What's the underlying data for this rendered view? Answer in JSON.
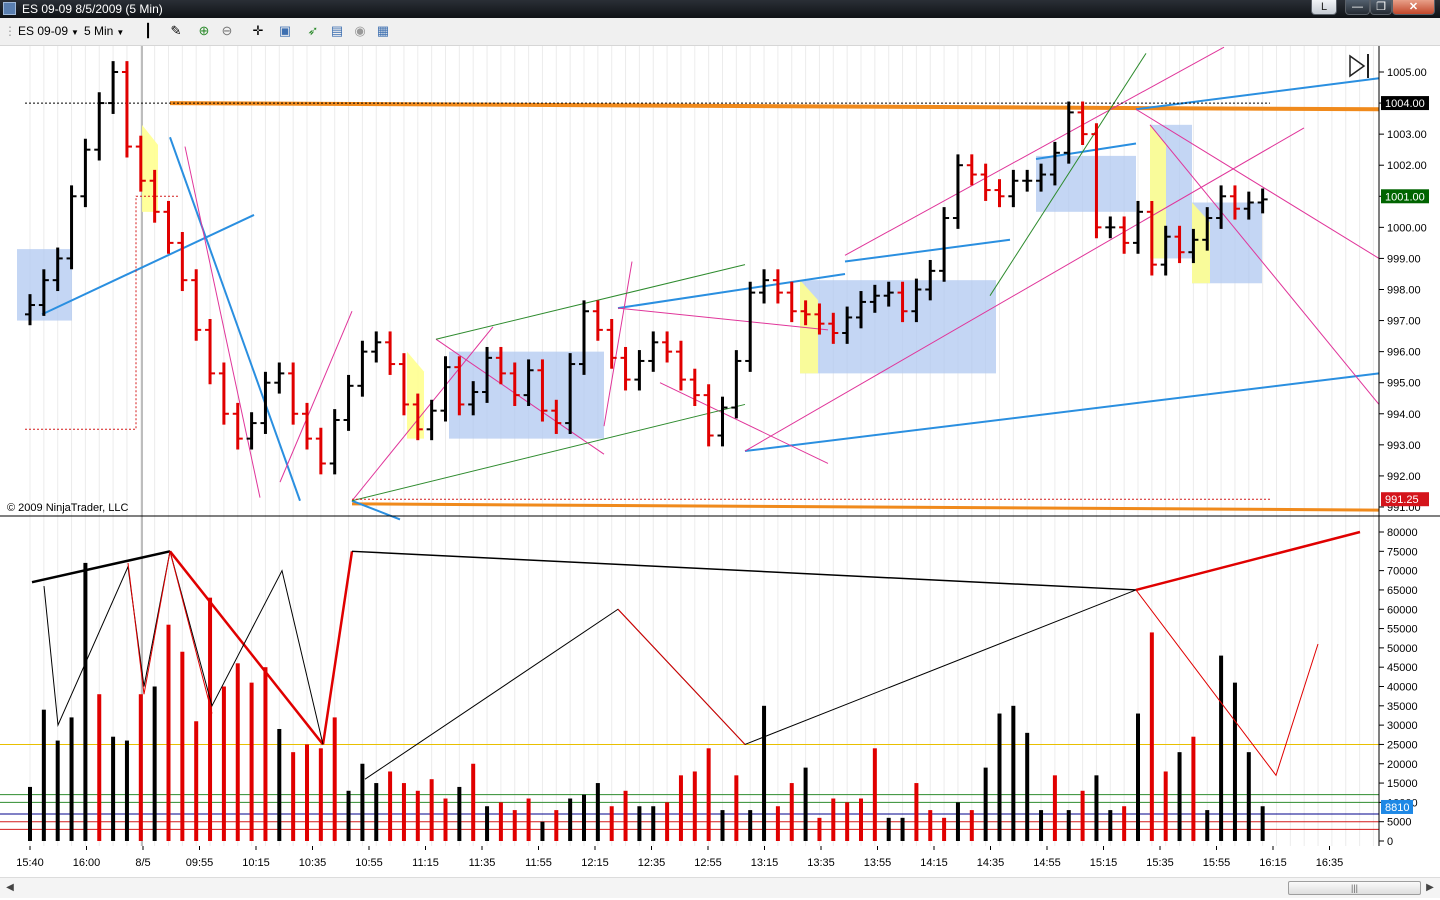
{
  "window": {
    "title": "ES 09-09  8/5/2009 (5 Min)",
    "buttons": {
      "restore_l": "L",
      "minimize": "—",
      "maximize": "❐",
      "close": "✕"
    }
  },
  "toolbar": {
    "instrument": "ES 09-09",
    "interval": "5 Min",
    "icons": [
      "bar-type-icon",
      "drawing-tool-icon",
      "zoom-in-icon",
      "zoom-out-icon",
      "crosshair-icon",
      "properties-icon",
      "strategies-icon",
      "indicators-icon",
      "data-series-icon",
      "chart-table-icon"
    ]
  },
  "chart": {
    "copyright": "© 2009 NinjaTrader, LLC",
    "price_axis": [
      "1005.00",
      "1004.00",
      "1003.00",
      "1002.00",
      "1001.00",
      "1000.00",
      "999.00",
      "998.00",
      "997.00",
      "996.00",
      "995.00",
      "994.00",
      "993.00",
      "992.00",
      "991.00"
    ],
    "price_tags": [
      {
        "label": "1004.00",
        "color": "#000000"
      },
      {
        "label": "1001.00",
        "color": "#006400"
      },
      {
        "label": "991.25",
        "color": "#d4141b"
      }
    ],
    "volume_axis": [
      "80000",
      "75000",
      "70000",
      "65000",
      "60000",
      "55000",
      "50000",
      "45000",
      "40000",
      "35000",
      "30000",
      "25000",
      "20000",
      "15000",
      "10000",
      "5000",
      "0"
    ],
    "volume_tag": {
      "label": "8810",
      "color": "#1e88e5"
    },
    "time_axis": [
      "15:40",
      "16:00",
      "8/5",
      "09:55",
      "10:15",
      "10:35",
      "10:55",
      "11:15",
      "11:35",
      "11:55",
      "12:15",
      "12:35",
      "12:55",
      "13:15",
      "13:35",
      "13:55",
      "14:15",
      "14:35",
      "14:55",
      "15:15",
      "15:35",
      "15:55",
      "16:15",
      "16:35"
    ],
    "colors": {
      "up": "#000000",
      "down": "#e00000",
      "box": "#b0c8f0",
      "fill_yellow": "#ffff90",
      "trend_blue": "#2a8fe0",
      "trend_orange": "#f08a1c",
      "trend_pink": "#e0359a",
      "trend_green": "#2e8b2e"
    }
  },
  "chart_data": {
    "type": "bar",
    "categories": [
      "15:40",
      "16:00",
      "8/5",
      "09:55",
      "10:15",
      "10:35",
      "10:55",
      "11:15",
      "11:35",
      "11:55",
      "12:15",
      "12:35",
      "12:55",
      "13:15",
      "13:35",
      "13:55",
      "14:15",
      "14:35",
      "14:55",
      "15:15",
      "15:35",
      "15:55",
      "16:15",
      "16:35"
    ],
    "ylim_price": [
      991,
      1005
    ],
    "ylim_volume": [
      0,
      80000
    ],
    "volume": [
      14000,
      34000,
      26000,
      32000,
      72000,
      38000,
      27000,
      26000,
      38000,
      40000,
      56000,
      49000,
      31000,
      63000,
      40000,
      46000,
      41000,
      45000,
      29000,
      23000,
      25000,
      24000,
      32000,
      13000,
      20000,
      15000,
      18000,
      15000,
      13000,
      16000,
      11000,
      14000,
      20000,
      9000,
      10000,
      8000,
      11000,
      5000,
      8000,
      11000,
      12000,
      15000,
      9000,
      13000,
      9000,
      9000,
      10000,
      17000,
      18000,
      24000,
      8000,
      17000,
      8000,
      35000,
      9000,
      15000,
      19000,
      6000,
      11000,
      10000,
      11000,
      24000,
      6000,
      6000,
      15000,
      8000,
      6000,
      10000,
      8000,
      19000,
      33000,
      35000,
      28000,
      8000,
      17000,
      8000,
      13000,
      17000,
      8000,
      9000,
      33000,
      54000,
      18000,
      23000,
      27000,
      8000,
      48000,
      41000,
      23000,
      9000
    ],
    "volume_up": [
      true,
      true,
      true,
      true,
      true,
      false,
      true,
      true,
      false,
      true,
      false,
      false,
      false,
      false,
      false,
      false,
      false,
      false,
      true,
      false,
      false,
      false,
      false,
      true,
      true,
      true,
      false,
      false,
      false,
      false,
      false,
      true,
      false,
      true,
      false,
      false,
      false,
      true,
      false,
      true,
      true,
      true,
      false,
      false,
      true,
      true,
      false,
      false,
      false,
      false,
      true,
      false,
      true,
      true,
      false,
      false,
      true,
      false,
      false,
      false,
      false,
      false,
      true,
      true,
      false,
      false,
      false,
      true,
      false,
      true,
      true,
      true,
      true,
      true,
      false,
      true,
      false,
      true,
      true,
      false,
      true,
      false,
      false,
      true,
      false,
      true,
      true,
      true,
      true,
      true
    ],
    "closes": [
      997.5,
      998.3,
      999.0,
      1001.0,
      1002.5,
      1004.0,
      1005.0,
      1002.6,
      1001.5,
      1000.5,
      999.5,
      998.3,
      996.7,
      995.3,
      994.0,
      993.2,
      993.7,
      995.0,
      995.3,
      994.0,
      993.2,
      992.4,
      993.8,
      994.9,
      996.0,
      996.3,
      995.6,
      994.3,
      993.5,
      994.1,
      995.5,
      994.3,
      994.7,
      995.8,
      995.3,
      994.6,
      995.4,
      994.1,
      993.7,
      995.6,
      997.3,
      996.7,
      995.8,
      995.1,
      995.7,
      996.3,
      996.0,
      995.1,
      994.6,
      993.3,
      994.2,
      995.7,
      997.9,
      998.3,
      997.9,
      997.3,
      997.2,
      996.9,
      996.6,
      997.1,
      997.6,
      997.8,
      997.9,
      997.3,
      998.0,
      998.6,
      1000.3,
      1002.0,
      1001.7,
      1001.2,
      1001.0,
      1001.5,
      1001.5,
      1001.7,
      1002.4,
      1003.7,
      1003.0,
      1000.0,
      1000.0,
      999.5,
      1000.5,
      998.8,
      999.7,
      999.2,
      999.6,
      1000.3,
      1001.0,
      1000.6,
      1000.8,
      1000.9
    ]
  }
}
